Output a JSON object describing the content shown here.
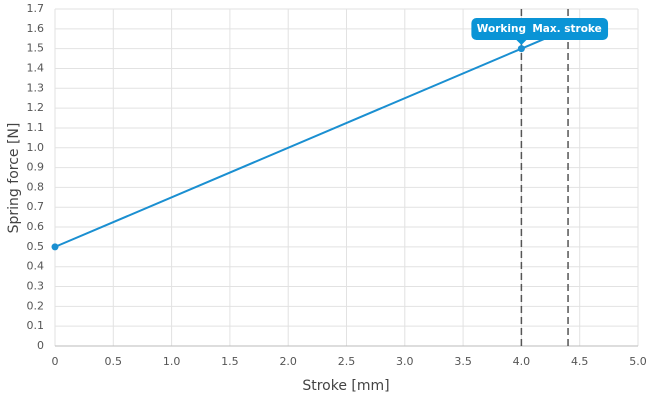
{
  "chart_data": {
    "type": "line",
    "xlabel": "Stroke [mm]",
    "ylabel": "Spring force [N]",
    "series": [
      {
        "name": "Spring force",
        "color": "#1a8fd1",
        "x": [
          0,
          4,
          4.4
        ],
        "values": [
          0.5,
          1.5,
          1.6
        ]
      }
    ],
    "xlim": [
      0,
      5
    ],
    "ylim": [
      0,
      1.7
    ],
    "xticks": [
      0,
      0.5,
      {
        "value": 1,
        "label": "1.0"
      },
      1.5,
      {
        "value": 2,
        "label": "2.0"
      },
      2.5,
      {
        "value": 3,
        "label": "3.0"
      },
      3.5,
      {
        "value": 4,
        "label": "4.0"
      },
      4.5,
      {
        "value": 5,
        "label": "5.0"
      }
    ],
    "yticks": [
      0,
      0.1,
      0.2,
      0.3,
      0.4,
      0.5,
      0.6,
      0.7,
      0.8,
      0.9,
      {
        "value": 1,
        "label": "1.0"
      },
      1.1,
      1.2,
      1.3,
      1.4,
      1.5,
      1.6,
      1.7
    ],
    "grid": true,
    "vlines": [
      {
        "x": 4,
        "label": "Working"
      },
      {
        "x": 4.4,
        "label": "Max. stroke"
      }
    ]
  }
}
